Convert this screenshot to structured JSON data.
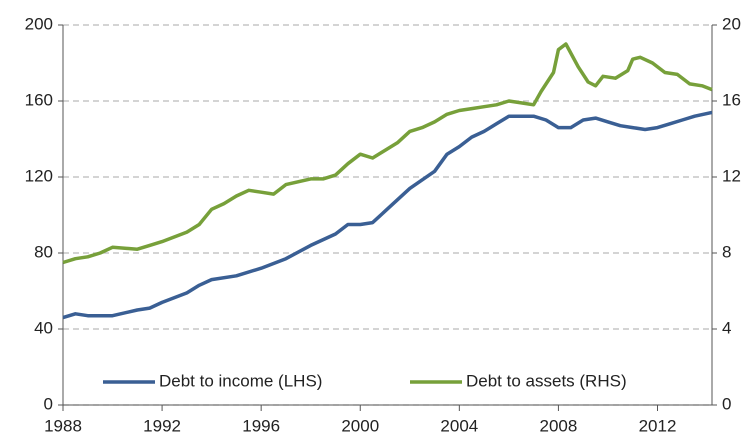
{
  "chart_data": {
    "type": "line",
    "xlim": [
      1988,
      2014.2
    ],
    "xticks": [
      1988,
      1992,
      1996,
      2000,
      2004,
      2008,
      2012
    ],
    "ylim": [
      0,
      200
    ],
    "yticks": [
      0,
      40,
      80,
      120,
      160,
      200
    ],
    "y2lim": [
      0,
      20
    ],
    "y2ticks": [
      0,
      4,
      8,
      12,
      16,
      20
    ],
    "grid": true,
    "legend": "bottom",
    "series": [
      {
        "name": "Debt to income (LHS)",
        "color": "#3a5f94",
        "axis": "y",
        "x": [
          1988,
          1988.5,
          1989,
          1990,
          1991,
          1991.5,
          1992,
          1993,
          1993.5,
          1994,
          1995,
          1996,
          1997,
          1998,
          1999,
          1999.5,
          2000,
          2000.5,
          2001,
          2002,
          2003,
          2003.5,
          2004,
          2004.5,
          2005,
          2005.5,
          2006,
          2006.5,
          2007,
          2007.5,
          2008,
          2008.5,
          2009,
          2009.5,
          2010,
          2010.5,
          2011,
          2011.5,
          2012,
          2012.5,
          2013,
          2013.5,
          2014.2
        ],
        "values": [
          46,
          48,
          47,
          47,
          50,
          51,
          54,
          59,
          63,
          66,
          68,
          72,
          77,
          84,
          90,
          95,
          95,
          96,
          102,
          114,
          123,
          132,
          136,
          141,
          144,
          148,
          152,
          152,
          152,
          150,
          146,
          146,
          150,
          151,
          149,
          147,
          146,
          145,
          146,
          148,
          150,
          152,
          154
        ]
      },
      {
        "name": "Debt to assets (RHS)",
        "color": "#77a03a",
        "axis": "y2",
        "x": [
          1988,
          1988.5,
          1989,
          1989.5,
          1990,
          1991,
          1991.5,
          1992,
          1993,
          1993.5,
          1994,
          1994.5,
          1995,
          1995.5,
          1996,
          1996.5,
          1997,
          1998,
          1998.5,
          1999,
          1999.5,
          2000,
          2000.5,
          2001,
          2001.5,
          2002,
          2002.5,
          2003,
          2003.5,
          2004,
          2004.5,
          2005,
          2005.5,
          2006,
          2006.5,
          2007,
          2007.3,
          2007.8,
          2008,
          2008.3,
          2008.8,
          2009.2,
          2009.5,
          2009.8,
          2010.3,
          2010.8,
          2011,
          2011.3,
          2011.8,
          2012.3,
          2012.8,
          2013.3,
          2013.8,
          2014.2
        ],
        "values": [
          7.5,
          7.7,
          7.8,
          8.0,
          8.3,
          8.2,
          8.4,
          8.6,
          9.1,
          9.5,
          10.3,
          10.6,
          11.0,
          11.3,
          11.2,
          11.1,
          11.6,
          11.9,
          11.9,
          12.1,
          12.7,
          13.2,
          13.0,
          13.4,
          13.8,
          14.4,
          14.6,
          14.9,
          15.3,
          15.5,
          15.6,
          15.7,
          15.8,
          16.0,
          15.9,
          15.8,
          16.5,
          17.5,
          18.7,
          19.0,
          17.8,
          17.0,
          16.8,
          17.3,
          17.2,
          17.6,
          18.2,
          18.3,
          18.0,
          17.5,
          17.4,
          16.9,
          16.8,
          16.6
        ]
      }
    ]
  }
}
